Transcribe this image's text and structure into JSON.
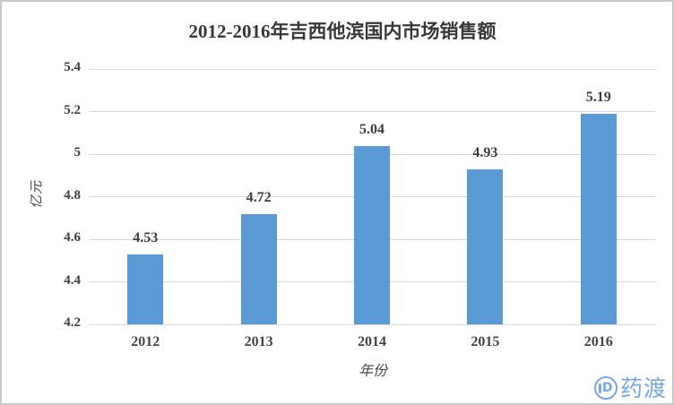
{
  "chart_data": {
    "type": "bar",
    "title": "2012-2016年吉西他滨国内市场销售额",
    "categories": [
      "2012",
      "2013",
      "2014",
      "2015",
      "2016"
    ],
    "values": [
      4.53,
      4.72,
      5.04,
      4.93,
      5.19
    ],
    "value_labels": [
      "4.53",
      "4.72",
      "5.04",
      "4.93",
      "5.19"
    ],
    "xlabel": "年份",
    "ylabel": "亿元",
    "ylim": [
      4.2,
      5.4
    ],
    "ytick_step": 0.2,
    "ytick_labels": [
      "4.2",
      "4.4",
      "4.6",
      "4.8",
      "5",
      "5.2",
      "5.4"
    ],
    "bar_color": "#5b9bd5",
    "grid_color": "#d9d9d9",
    "text_color": "#404040",
    "grid": true,
    "legend": false
  },
  "watermark": {
    "text": "药渡",
    "icon_letter": "D",
    "color": "#74a7ea"
  }
}
